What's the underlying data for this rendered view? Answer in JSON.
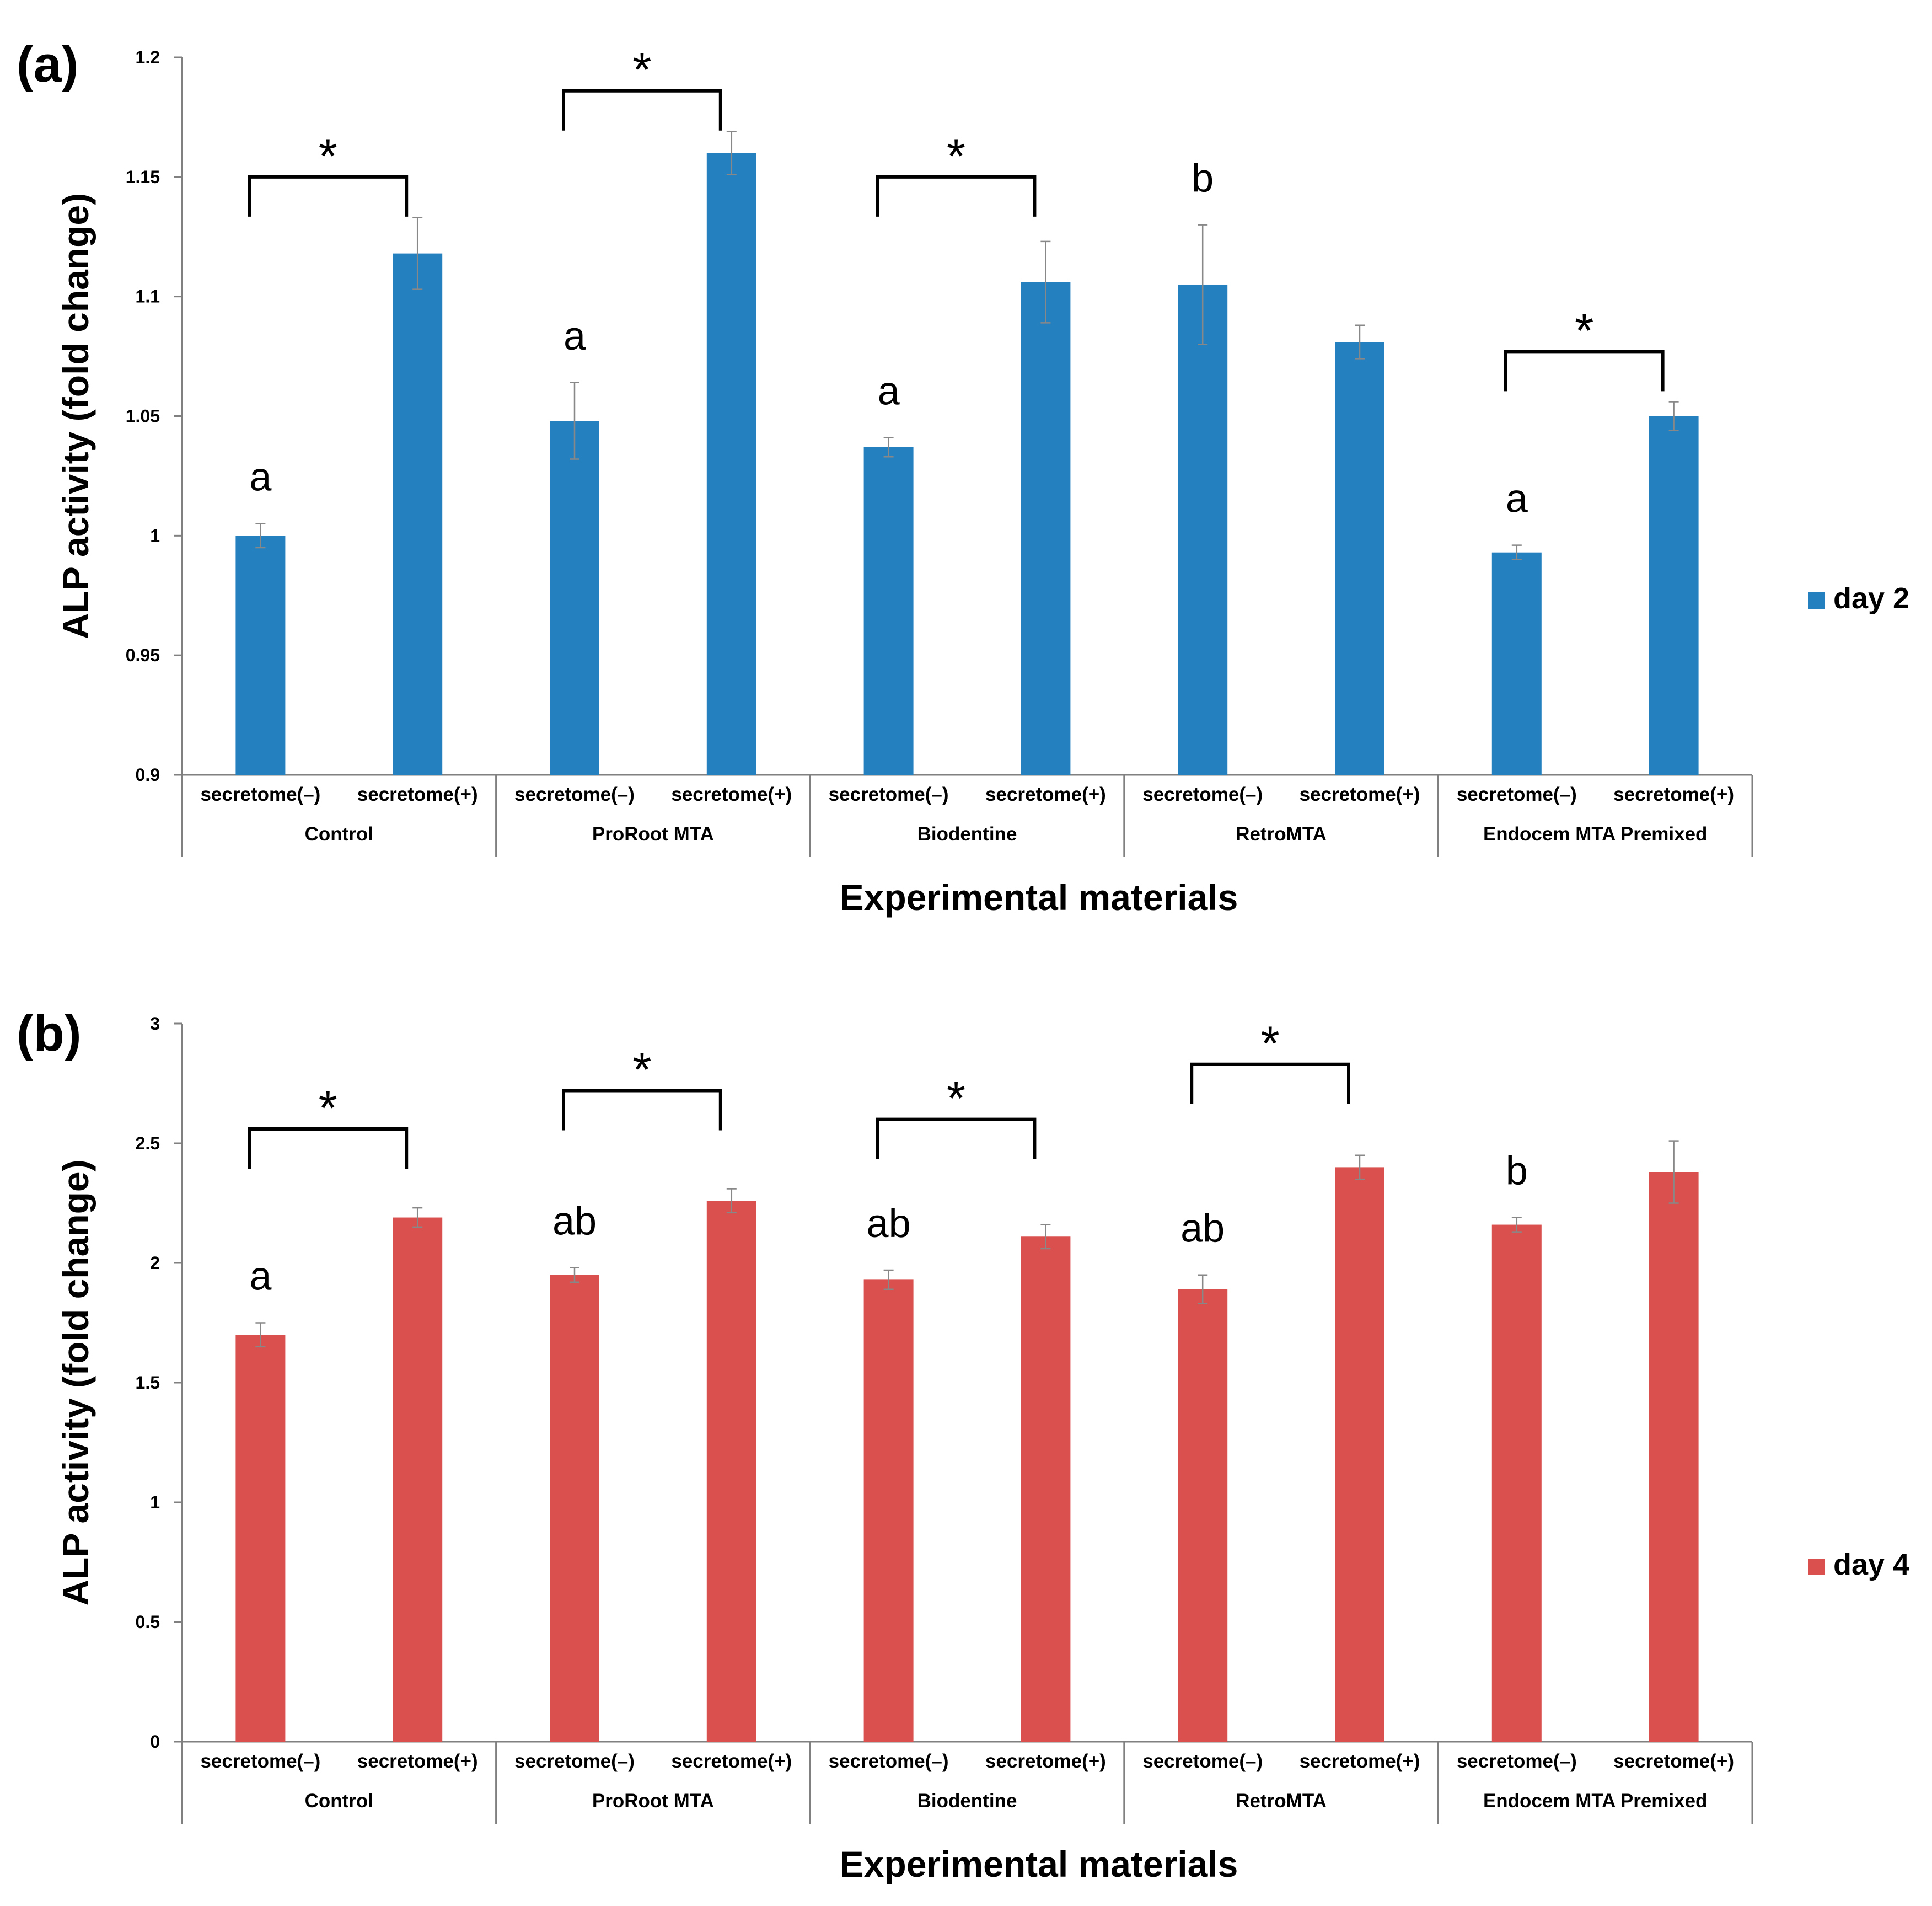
{
  "chart_data": [
    {
      "panel_label": "(a)",
      "type": "bar",
      "groups": [
        "Control",
        "ProRoot MTA",
        "Biodentine",
        "RetroMTA",
        "Endocem MTA Premixed"
      ],
      "subcategories": [
        "secretome(–)",
        "secretome(+)"
      ],
      "series": [
        {
          "name": "day 2",
          "color": "#2580c0",
          "values": [
            1.0,
            1.118,
            1.048,
            1.16,
            1.037,
            1.106,
            1.105,
            1.081,
            0.993,
            1.05
          ],
          "errors": [
            0.005,
            0.015,
            0.016,
            0.009,
            0.004,
            0.017,
            0.025,
            0.007,
            0.003,
            0.006
          ]
        }
      ],
      "xlabel": "Experimental materials",
      "ylabel": "ALP activity (fold change)",
      "ylim": [
        0.9,
        1.2
      ],
      "yticks": [
        "0.9",
        "0.95",
        "1",
        "1.05",
        "1.1",
        "1.15",
        "1.2"
      ],
      "grid": false,
      "legend_position": "right",
      "annotations": [
        {
          "text": "a",
          "bar": 0
        },
        {
          "text": "a",
          "bar": 2
        },
        {
          "text": "a",
          "bar": 4
        },
        {
          "text": "b",
          "bar": 6
        },
        {
          "text": "a",
          "bar": 8
        }
      ],
      "significance_brackets": [
        {
          "from_bar": 0,
          "to_bar": 1,
          "label": "*",
          "level": 1.15
        },
        {
          "from_bar": 2,
          "to_bar": 3,
          "label": "*",
          "level": 1.186
        },
        {
          "from_bar": 4,
          "to_bar": 5,
          "label": "*",
          "level": 1.15
        },
        {
          "from_bar": 8,
          "to_bar": 9,
          "label": "*",
          "level": 1.077
        }
      ]
    },
    {
      "panel_label": "(b)",
      "type": "bar",
      "groups": [
        "Control",
        "ProRoot MTA",
        "Biodentine",
        "RetroMTA",
        "Endocem MTA Premixed"
      ],
      "subcategories": [
        "secretome(–)",
        "secretome(+)"
      ],
      "series": [
        {
          "name": "day 4",
          "color": "#d9504e",
          "values": [
            1.7,
            2.19,
            1.95,
            2.26,
            1.93,
            2.11,
            1.89,
            2.4,
            2.16,
            2.38
          ],
          "errors": [
            0.05,
            0.04,
            0.03,
            0.05,
            0.04,
            0.05,
            0.06,
            0.05,
            0.03,
            0.13
          ]
        }
      ],
      "xlabel": "Experimental materials",
      "ylabel": "ALP activity (fold change)",
      "ylim": [
        0,
        3
      ],
      "yticks": [
        "0",
        "0.5",
        "1",
        "1.5",
        "2",
        "2.5",
        "3"
      ],
      "grid": false,
      "legend_position": "right",
      "annotations": [
        {
          "text": "a",
          "bar": 0
        },
        {
          "text": "ab",
          "bar": 2
        },
        {
          "text": "ab",
          "bar": 4
        },
        {
          "text": "ab",
          "bar": 6
        },
        {
          "text": "b",
          "bar": 8
        }
      ],
      "significance_brackets": [
        {
          "from_bar": 0,
          "to_bar": 1,
          "label": "*",
          "level": 2.56
        },
        {
          "from_bar": 2,
          "to_bar": 3,
          "label": "*",
          "level": 2.72
        },
        {
          "from_bar": 4,
          "to_bar": 5,
          "label": "*",
          "level": 2.6
        },
        {
          "from_bar": 6,
          "to_bar": 7,
          "label": "*",
          "level": 2.83
        }
      ]
    }
  ]
}
